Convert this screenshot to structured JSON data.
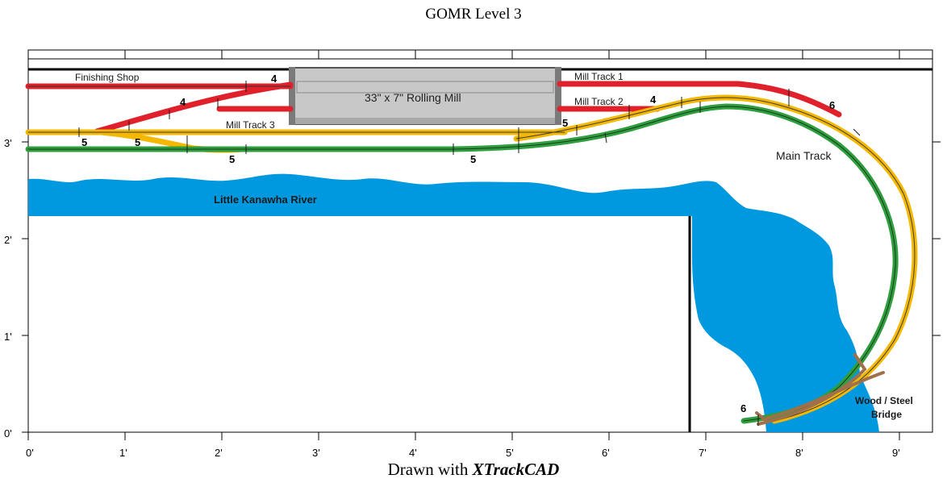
{
  "title": "GOMR Level 3",
  "footer": {
    "prefix": "Drawn with ",
    "brand": "XTrackCAD"
  },
  "axes": {
    "x_ticks": [
      "0'",
      "1'",
      "2'",
      "3'",
      "4'",
      "5'",
      "6'",
      "7'",
      "8'",
      "9'"
    ],
    "y_ticks": [
      "0'",
      "1'",
      "2'",
      "3'"
    ]
  },
  "labels": {
    "finishing_shop": "Finishing Shop",
    "rolling_mill": "33\" x 7\" Rolling Mill",
    "mill_track_1": "Mill Track 1",
    "mill_track_2": "Mill Track 2",
    "mill_track_3": "Mill Track 3",
    "main_track": "Main Track",
    "river": "Little Kanawha River",
    "bridge_line1": "Wood / Steel",
    "bridge_line2": "Bridge"
  },
  "turnout_numbers": {
    "t1": "4",
    "t2": "4",
    "t3": "4",
    "t4": "5",
    "t5": "5",
    "t6": "5",
    "t7": "5",
    "t8": "5",
    "t9": "6",
    "t10": "6"
  },
  "colors": {
    "red_track": "#e0202a",
    "yellow_track": "#f5b800",
    "green_track": "#2e9e3e",
    "river": "#0099e0",
    "mill_fill": "#c8c8c8",
    "bridge": "#a0704a"
  }
}
